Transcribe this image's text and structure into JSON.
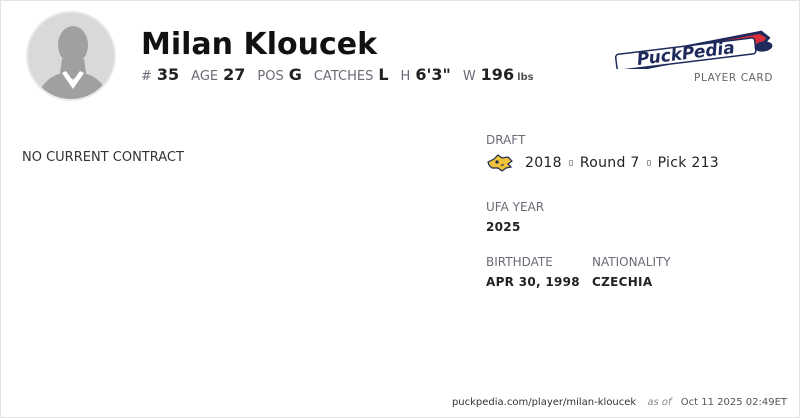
{
  "player": {
    "name": "Milan Kloucek",
    "avatar_icon": "silhouette-avatar-icon"
  },
  "stats": [
    {
      "label": "#",
      "value": "35"
    },
    {
      "label": "AGE",
      "value": "27"
    },
    {
      "label": "POS",
      "value": "G"
    },
    {
      "label": "CATCHES",
      "value": "L"
    },
    {
      "label": "H",
      "value": "6'3\""
    },
    {
      "label": "W",
      "value": "196",
      "unit": "lbs"
    }
  ],
  "brand": {
    "logo_text": "PuckPedia",
    "card_label": "PLAYER CARD",
    "colors": {
      "red": "#d62e3a",
      "navy": "#1f2a5c"
    }
  },
  "contract": {
    "status": "NO CURRENT CONTRACT"
  },
  "draft": {
    "label": "DRAFT",
    "year": "2018",
    "round": "Round 7",
    "pick": "Pick 213",
    "team_icon": "predators-logo-icon"
  },
  "ufa": {
    "label": "UFA YEAR",
    "value": "2025"
  },
  "birthdate": {
    "label": "BIRTHDATE",
    "value": "APR 30, 1998"
  },
  "nationality": {
    "label": "NATIONALITY",
    "value": "CZECHIA"
  },
  "footer": {
    "url": "puckpedia.com/player/milan-kloucek",
    "as_of_label": "as of",
    "timestamp": "Oct 11 2025 02:49ET"
  }
}
